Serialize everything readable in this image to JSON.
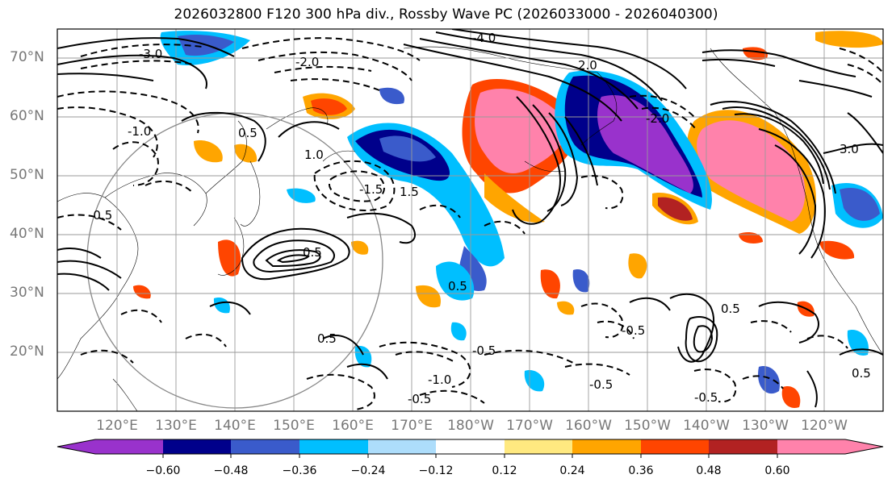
{
  "title": "2026032800 F120 300 hPa div., Rossby Wave PC (2026033000 - 2026040300)",
  "map": {
    "lat_labels": [
      "70°N",
      "60°N",
      "50°N",
      "40°N",
      "30°N",
      "20°N"
    ],
    "lon_labels": [
      "120°E",
      "130°E",
      "140°E",
      "150°E",
      "160°E",
      "170°E",
      "180°W",
      "170°W",
      "160°W",
      "150°W",
      "140°W",
      "130°W",
      "120°W"
    ],
    "contour_labels": [
      "-3.0",
      "-2.0",
      "-4.0",
      "-0.5",
      "0.5",
      "2.0",
      "-1.0",
      "-1.5",
      "1.0",
      "1.5",
      "0.5",
      "-0.5",
      "-0.5",
      "-0.5",
      "-1.0",
      "0.5",
      "-0.5",
      "-0.5",
      "0.5",
      "3.0",
      "-2.0",
      "0.5",
      "0.5"
    ]
  },
  "colorbar": {
    "ticks": [
      "−0.60",
      "−0.48",
      "−0.36",
      "−0.24",
      "−0.12",
      "0.12",
      "0.24",
      "0.36",
      "0.48",
      "0.60"
    ],
    "colors": [
      "#9932CC",
      "#00008B",
      "#3A5BCB",
      "#00BFFF",
      "#ADDDFB",
      "#FFFFFF",
      "#FFE980",
      "#FFA500",
      "#FF4500",
      "#B22222",
      "#FF82AB"
    ]
  }
}
